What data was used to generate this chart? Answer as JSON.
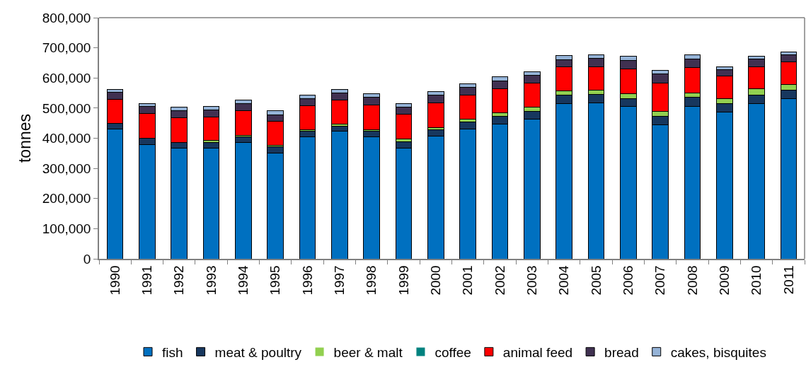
{
  "chart_data": {
    "type": "bar",
    "stacked": true,
    "ylabel": "tonnes",
    "categories": [
      "1990",
      "1991",
      "1992",
      "1993",
      "1994",
      "1995",
      "1996",
      "1997",
      "1998",
      "1999",
      "2000",
      "2001",
      "2002",
      "2003",
      "2004",
      "2005",
      "2006",
      "2007",
      "2008",
      "2009",
      "2010",
      "2011"
    ],
    "series": [
      {
        "name": "fish",
        "color": "#0070c0",
        "values": [
          430000,
          380000,
          368000,
          368000,
          386000,
          351000,
          405000,
          423000,
          405000,
          368000,
          406000,
          430000,
          448000,
          464000,
          516000,
          518000,
          505000,
          445000,
          506000,
          486000,
          516000,
          532000
        ]
      },
      {
        "name": "meat & poultry",
        "color": "#17375e",
        "values": [
          20000,
          20000,
          19000,
          19000,
          19000,
          21000,
          18000,
          18000,
          18000,
          21000,
          22000,
          24000,
          25000,
          26000,
          26000,
          27000,
          27000,
          27000,
          30000,
          30000,
          28000,
          28000
        ]
      },
      {
        "name": "beer & malt",
        "color": "#92d050",
        "values": [
          0,
          0,
          0,
          5000,
          5000,
          5000,
          6000,
          6000,
          6000,
          9000,
          7000,
          9000,
          12000,
          13000,
          15000,
          15000,
          15000,
          17000,
          15000,
          16000,
          20000,
          18000
        ]
      },
      {
        "name": "coffee",
        "color": "#00827f",
        "values": [
          0,
          0,
          0,
          0,
          0,
          0,
          0,
          0,
          0,
          0,
          0,
          0,
          0,
          0,
          0,
          0,
          0,
          0,
          0,
          0,
          0,
          0
        ]
      },
      {
        "name": "animal feed",
        "color": "#ff0000",
        "values": [
          80000,
          81000,
          81000,
          78000,
          81000,
          79000,
          79000,
          79000,
          82000,
          81000,
          82000,
          81000,
          80000,
          81000,
          80000,
          78000,
          83000,
          95000,
          84000,
          74000,
          74000,
          75000
        ]
      },
      {
        "name": "bread",
        "color": "#403151",
        "values": [
          22000,
          24000,
          23000,
          24000,
          23000,
          22000,
          24000,
          23000,
          24000,
          24000,
          27000,
          24000,
          24000,
          24000,
          24000,
          26000,
          28000,
          29000,
          27000,
          22000,
          24000,
          23000
        ]
      },
      {
        "name": "cakes, bisquites",
        "color": "#95b3d7",
        "values": [
          11000,
          11000,
          12000,
          12000,
          13000,
          13000,
          12000,
          13000,
          12000,
          11000,
          11000,
          13000,
          15000,
          13000,
          14000,
          13000,
          13000,
          13000,
          15000,
          10000,
          9000,
          10000
        ]
      }
    ],
    "ylim": [
      0,
      800000
    ],
    "yticks": [
      0,
      {
        "value": 100000,
        "label": "100,000"
      },
      {
        "value": 200000,
        "label": "200,000"
      },
      {
        "value": 300000,
        "label": "300,000"
      },
      {
        "value": 400000,
        "label": "400,000"
      },
      {
        "value": 500000,
        "label": "500,000"
      },
      {
        "value": 600000,
        "label": "600,000"
      },
      {
        "value": 700000,
        "label": "700,000"
      },
      {
        "value": 800000,
        "label": "800,000"
      }
    ],
    "grid": false,
    "legend": "bottom"
  }
}
